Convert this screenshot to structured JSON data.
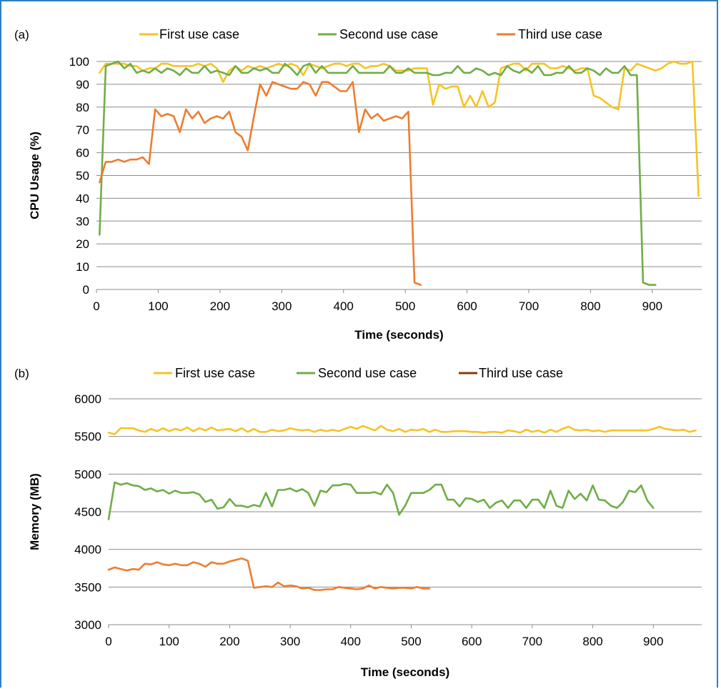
{
  "chart_data": [
    {
      "panel": "(a)",
      "type": "line",
      "xlabel": "Time (seconds)",
      "ylabel": "CPU Usage (%)",
      "xlim": [
        0,
        980
      ],
      "ylim": [
        0,
        100
      ],
      "xticks": [
        0,
        100,
        200,
        300,
        400,
        500,
        600,
        700,
        800,
        900
      ],
      "yticks": [
        0,
        10,
        20,
        30,
        40,
        50,
        60,
        70,
        80,
        90,
        100
      ],
      "grid": "horizontal",
      "legend": "top",
      "series": [
        {
          "name": "First use case",
          "color": "#f6c324",
          "x": [
            5,
            15,
            25,
            35,
            45,
            55,
            65,
            75,
            85,
            95,
            105,
            115,
            125,
            135,
            145,
            155,
            165,
            175,
            185,
            195,
            205,
            215,
            225,
            235,
            245,
            255,
            265,
            275,
            285,
            295,
            305,
            315,
            325,
            335,
            345,
            355,
            365,
            375,
            385,
            395,
            405,
            415,
            425,
            435,
            445,
            455,
            465,
            475,
            485,
            495,
            505,
            515,
            525,
            535,
            545,
            555,
            565,
            575,
            585,
            595,
            605,
            615,
            625,
            635,
            645,
            655,
            665,
            675,
            685,
            695,
            705,
            715,
            725,
            735,
            745,
            755,
            765,
            775,
            785,
            795,
            805,
            815,
            825,
            835,
            845,
            855,
            865,
            875,
            885,
            895,
            905,
            915,
            925,
            935,
            945,
            955,
            965,
            975
          ],
          "y": [
            95,
            99,
            99,
            99,
            99,
            98,
            98,
            96,
            97,
            97,
            99,
            99,
            98,
            98,
            98,
            98,
            99,
            98,
            99,
            97,
            91,
            96,
            98,
            96,
            98,
            97,
            98,
            97,
            98,
            99,
            98,
            99,
            98,
            94,
            99,
            98,
            97,
            98,
            99,
            99,
            98,
            99,
            99,
            97,
            98,
            98,
            99,
            98,
            96,
            96,
            96,
            97,
            97,
            97,
            81,
            90,
            88,
            89,
            89,
            80,
            85,
            80,
            87,
            80,
            82,
            97,
            98,
            99,
            99,
            96,
            99,
            99,
            99,
            97,
            97,
            98,
            97,
            96,
            97,
            97,
            85,
            84,
            82,
            80,
            79,
            97,
            96,
            99,
            98,
            97,
            96,
            97,
            99,
            100,
            99,
            99,
            100,
            41
          ]
        },
        {
          "name": "Second use case",
          "color": "#70ad47",
          "x": [
            5,
            15,
            25,
            35,
            45,
            55,
            65,
            75,
            85,
            95,
            105,
            115,
            125,
            135,
            145,
            155,
            165,
            175,
            185,
            195,
            205,
            215,
            225,
            235,
            245,
            255,
            265,
            275,
            285,
            295,
            305,
            315,
            325,
            335,
            345,
            355,
            365,
            375,
            385,
            395,
            405,
            415,
            425,
            435,
            445,
            455,
            465,
            475,
            485,
            495,
            505,
            515,
            525,
            535,
            545,
            555,
            565,
            575,
            585,
            595,
            605,
            615,
            625,
            635,
            645,
            655,
            665,
            675,
            685,
            695,
            705,
            715,
            725,
            735,
            745,
            755,
            765,
            775,
            785,
            795,
            805,
            815,
            825,
            835,
            845,
            855,
            865,
            875,
            885,
            895,
            905
          ],
          "y": [
            24,
            98,
            99,
            100,
            97,
            99,
            95,
            96,
            95,
            97,
            95,
            97,
            96,
            94,
            97,
            95,
            95,
            98,
            95,
            96,
            95,
            94,
            98,
            95,
            95,
            97,
            96,
            97,
            95,
            95,
            99,
            97,
            94,
            98,
            99,
            95,
            98,
            95,
            95,
            95,
            95,
            98,
            95,
            95,
            95,
            95,
            95,
            98,
            95,
            95,
            97,
            95,
            95,
            95,
            94,
            94,
            95,
            95,
            98,
            95,
            95,
            97,
            96,
            94,
            95,
            94,
            98,
            96,
            95,
            97,
            95,
            98,
            94,
            94,
            95,
            95,
            98,
            95,
            95,
            97,
            96,
            94,
            97,
            95,
            95,
            98,
            94,
            94,
            3,
            2,
            2
          ]
        },
        {
          "name": "Third use case",
          "color": "#ed7d31",
          "x": [
            5,
            15,
            25,
            35,
            45,
            55,
            65,
            75,
            85,
            95,
            105,
            115,
            125,
            135,
            145,
            155,
            165,
            175,
            185,
            195,
            205,
            215,
            225,
            235,
            245,
            255,
            265,
            275,
            285,
            295,
            305,
            315,
            325,
            335,
            345,
            355,
            365,
            375,
            385,
            395,
            405,
            415,
            425,
            435,
            445,
            455,
            465,
            475,
            485,
            495,
            505,
            515,
            525
          ],
          "y": [
            47,
            56,
            56,
            57,
            56,
            57,
            57,
            58,
            55,
            79,
            76,
            77,
            76,
            69,
            79,
            75,
            78,
            73,
            75,
            76,
            75,
            78,
            69,
            67,
            61,
            76,
            90,
            85,
            91,
            90,
            89,
            88,
            88,
            91,
            90,
            85,
            91,
            91,
            89,
            87,
            87,
            91,
            69,
            79,
            75,
            77,
            74,
            75,
            76,
            75,
            78,
            3,
            2
          ]
        }
      ]
    },
    {
      "panel": "(b)",
      "type": "line",
      "xlabel": "Time (seconds)",
      "ylabel": "Memory (MB)",
      "xlim": [
        0,
        980
      ],
      "ylim": [
        3000,
        6000
      ],
      "xticks": [
        0,
        100,
        200,
        300,
        400,
        500,
        600,
        700,
        800,
        900
      ],
      "yticks": [
        3000,
        3500,
        4000,
        4500,
        5000,
        5500,
        6000
      ],
      "grid": "horizontal",
      "legend": "top",
      "series": [
        {
          "name": "First use case",
          "color": "#f6c324",
          "x": [
            0,
            10,
            20,
            30,
            40,
            50,
            60,
            70,
            80,
            90,
            100,
            110,
            120,
            130,
            140,
            150,
            160,
            170,
            180,
            190,
            200,
            210,
            220,
            230,
            240,
            250,
            260,
            270,
            280,
            290,
            300,
            310,
            320,
            330,
            340,
            350,
            360,
            370,
            380,
            390,
            400,
            410,
            420,
            430,
            440,
            450,
            460,
            470,
            480,
            490,
            500,
            510,
            520,
            530,
            540,
            550,
            560,
            570,
            580,
            590,
            600,
            610,
            620,
            630,
            640,
            650,
            660,
            670,
            680,
            690,
            700,
            710,
            720,
            730,
            740,
            750,
            760,
            770,
            780,
            790,
            800,
            810,
            820,
            830,
            840,
            850,
            860,
            870,
            880,
            890,
            900,
            910,
            920,
            930,
            940,
            950,
            960,
            970
          ],
          "y": [
            5550,
            5530,
            5610,
            5610,
            5610,
            5580,
            5560,
            5600,
            5570,
            5610,
            5570,
            5600,
            5580,
            5620,
            5570,
            5610,
            5580,
            5620,
            5580,
            5590,
            5600,
            5570,
            5610,
            5560,
            5600,
            5560,
            5560,
            5590,
            5570,
            5580,
            5610,
            5590,
            5580,
            5590,
            5560,
            5590,
            5570,
            5590,
            5570,
            5600,
            5630,
            5600,
            5640,
            5610,
            5580,
            5640,
            5590,
            5570,
            5600,
            5560,
            5590,
            5580,
            5600,
            5560,
            5590,
            5560,
            5560,
            5570,
            5570,
            5570,
            5560,
            5560,
            5550,
            5560,
            5560,
            5550,
            5580,
            5570,
            5550,
            5590,
            5560,
            5580,
            5550,
            5590,
            5560,
            5600,
            5630,
            5590,
            5580,
            5590,
            5570,
            5580,
            5560,
            5580,
            5580,
            5580,
            5580,
            5580,
            5580,
            5580,
            5600,
            5630,
            5600,
            5590,
            5580,
            5590,
            5560,
            5580
          ]
        },
        {
          "name": "Second use case",
          "color": "#70ad47",
          "x": [
            0,
            10,
            20,
            30,
            40,
            50,
            60,
            70,
            80,
            90,
            100,
            110,
            120,
            130,
            140,
            150,
            160,
            170,
            180,
            190,
            200,
            210,
            220,
            230,
            240,
            250,
            260,
            270,
            280,
            290,
            300,
            310,
            320,
            330,
            340,
            350,
            360,
            370,
            380,
            390,
            400,
            410,
            420,
            430,
            440,
            450,
            460,
            470,
            480,
            490,
            500,
            510,
            520,
            530,
            540,
            550,
            560,
            570,
            580,
            590,
            600,
            610,
            620,
            630,
            640,
            650,
            660,
            670,
            680,
            690,
            700,
            710,
            720,
            730,
            740,
            750,
            760,
            770,
            780,
            790,
            800,
            810,
            820,
            830,
            840,
            850,
            860,
            870,
            880,
            890,
            900
          ],
          "y": [
            4400,
            4890,
            4860,
            4880,
            4850,
            4840,
            4790,
            4810,
            4770,
            4790,
            4740,
            4780,
            4750,
            4750,
            4760,
            4730,
            4630,
            4660,
            4540,
            4560,
            4670,
            4580,
            4580,
            4560,
            4590,
            4570,
            4750,
            4570,
            4790,
            4790,
            4810,
            4770,
            4800,
            4750,
            4580,
            4780,
            4760,
            4850,
            4850,
            4870,
            4860,
            4750,
            4750,
            4750,
            4760,
            4730,
            4860,
            4750,
            4460,
            4580,
            4750,
            4750,
            4750,
            4790,
            4860,
            4860,
            4660,
            4660,
            4570,
            4680,
            4670,
            4630,
            4660,
            4550,
            4620,
            4650,
            4550,
            4650,
            4650,
            4550,
            4660,
            4660,
            4550,
            4780,
            4580,
            4550,
            4780,
            4670,
            4740,
            4650,
            4850,
            4660,
            4650,
            4580,
            4550,
            4630,
            4780,
            4760,
            4850,
            4650,
            4550
          ]
        },
        {
          "name": "Third use case",
          "color": "#ed7d31",
          "legend_color": "#843c0c",
          "x": [
            0,
            10,
            20,
            30,
            40,
            50,
            60,
            70,
            80,
            90,
            100,
            110,
            120,
            130,
            140,
            150,
            160,
            170,
            180,
            190,
            200,
            210,
            220,
            230,
            240,
            250,
            260,
            270,
            280,
            290,
            300,
            310,
            320,
            330,
            340,
            350,
            360,
            370,
            380,
            390,
            400,
            410,
            420,
            430,
            440,
            450,
            460,
            470,
            480,
            490,
            500,
            510,
            520,
            530
          ],
          "y": [
            3730,
            3760,
            3740,
            3720,
            3740,
            3730,
            3810,
            3800,
            3830,
            3800,
            3790,
            3810,
            3790,
            3790,
            3830,
            3810,
            3770,
            3830,
            3810,
            3810,
            3840,
            3860,
            3880,
            3850,
            3490,
            3500,
            3510,
            3500,
            3560,
            3510,
            3520,
            3510,
            3480,
            3490,
            3460,
            3460,
            3470,
            3470,
            3500,
            3490,
            3480,
            3470,
            3480,
            3520,
            3480,
            3500,
            3490,
            3480,
            3490,
            3490,
            3480,
            3500,
            3480,
            3480
          ]
        }
      ]
    }
  ]
}
